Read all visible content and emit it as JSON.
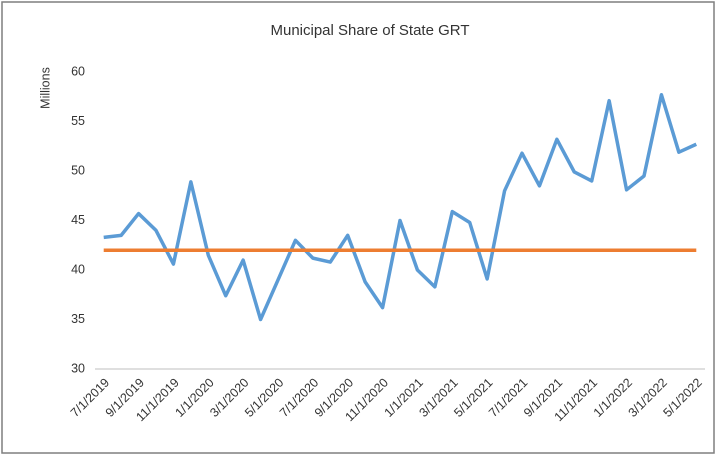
{
  "chart_data": {
    "type": "line",
    "title": "Municipal  Share of State GRT",
    "y_label": "Millions",
    "categories": [
      "7/1/2019",
      null,
      "9/1/2019",
      null,
      "11/1/2019",
      null,
      "1/1/2020",
      null,
      "3/1/2020",
      null,
      "5/1/2020",
      null,
      "7/1/2020",
      null,
      "9/1/2020",
      null,
      "11/1/2020",
      null,
      "1/1/2021",
      null,
      "3/1/2021",
      null,
      "5/1/2021",
      null,
      "7/1/2021",
      null,
      "9/1/2021",
      null,
      "11/1/2021",
      null,
      "1/1/2022",
      null,
      "3/1/2022",
      null,
      "5/1/2022"
    ],
    "series": [
      {
        "color": "#5b9bd5",
        "values": [
          43.3,
          43.5,
          45.7,
          44.0,
          40.6,
          48.9,
          41.5,
          37.4,
          41.0,
          35.0,
          39.0,
          43.0,
          41.2,
          40.8,
          43.5,
          38.8,
          36.2,
          45.0,
          40.0,
          38.3,
          45.9,
          44.8,
          39.1,
          48.0,
          51.8,
          48.5,
          53.2,
          49.9,
          49.0,
          57.1,
          48.1,
          49.5,
          57.7,
          51.9,
          52.7
        ]
      },
      {
        "color": "#ed7d31",
        "values": [
          42,
          42,
          42,
          42,
          42,
          42,
          42,
          42,
          42,
          42,
          42,
          42,
          42,
          42,
          42,
          42,
          42,
          42,
          42,
          42,
          42,
          42,
          42,
          42,
          42,
          42,
          42,
          42,
          42,
          42,
          42,
          42,
          42,
          42,
          42
        ]
      }
    ],
    "ylim": [
      30,
      60
    ],
    "yticks": [
      30,
      35,
      40,
      45,
      50,
      55,
      60
    ],
    "grid": false
  }
}
